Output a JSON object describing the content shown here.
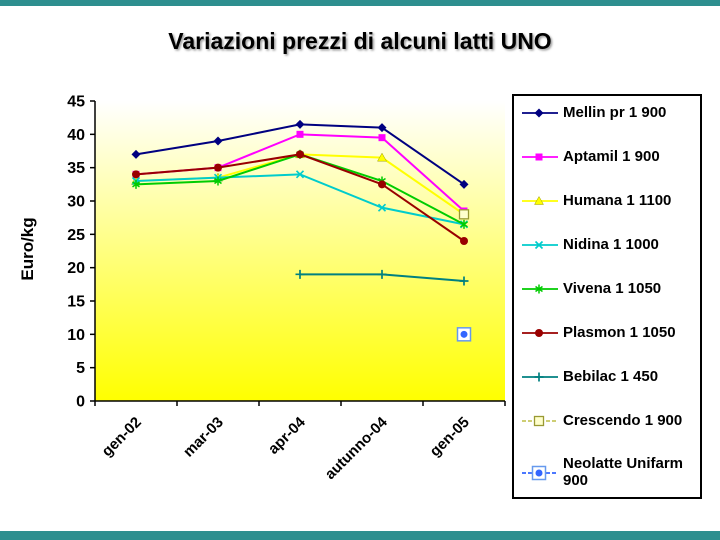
{
  "page": {
    "frame_color": "#2E8F8F"
  },
  "slide": {
    "title": "Variazioni prezzi di alcuni latti UNO"
  },
  "chart_data": {
    "type": "line",
    "title": "Variazioni prezzi di alcuni latti UNO",
    "xlabel": "",
    "ylabel": "Euro/kg",
    "ylim": [
      0,
      45
    ],
    "ytick_step": 5,
    "grid": false,
    "legend_position": "right",
    "plot_background_gradient": [
      "#FFFFFF",
      "#FFFF00"
    ],
    "categories": [
      "gen-02",
      "mar-03",
      "apr-04",
      "autunno-04",
      "gen-05"
    ],
    "series": [
      {
        "name": "Mellin pr 1 900",
        "color": "#000080",
        "marker": "diamond",
        "values": [
          37,
          39,
          41.5,
          41,
          32.5
        ]
      },
      {
        "name": "Aptamil 1 900",
        "color": "#FF00FF",
        "marker": "square",
        "values": [
          34,
          35,
          40,
          39.5,
          28.5
        ]
      },
      {
        "name": "Humana 1 1100",
        "color": "#FFFF00",
        "marker": "triangle",
        "values": [
          33,
          33.5,
          37,
          36.5,
          28
        ]
      },
      {
        "name": "Nidina 1 1000",
        "color": "#00CCCC",
        "marker": "x",
        "values": [
          33,
          33.5,
          34,
          29,
          26.5
        ]
      },
      {
        "name": "Vivena 1 1050",
        "color": "#00CC00",
        "marker": "asterisk",
        "values": [
          32.5,
          33,
          37,
          33,
          26.5
        ]
      },
      {
        "name": "Plasmon 1 1050",
        "color": "#990000",
        "marker": "circle",
        "values": [
          34,
          35,
          37,
          32.5,
          24
        ]
      },
      {
        "name": "Bebilac 1 450",
        "color": "#008080",
        "marker": "plus",
        "values": [
          null,
          null,
          19,
          19,
          18
        ]
      },
      {
        "name": "Crescendo 1 900",
        "color": "#C8C860",
        "marker": "open-square",
        "dashed": true,
        "values": [
          null,
          null,
          null,
          null,
          28
        ]
      },
      {
        "name": "Neolatte Unifarm 900",
        "color": "#3366FF",
        "marker": "dot-boxed",
        "dashed": true,
        "values": [
          null,
          null,
          null,
          null,
          10
        ]
      }
    ]
  }
}
